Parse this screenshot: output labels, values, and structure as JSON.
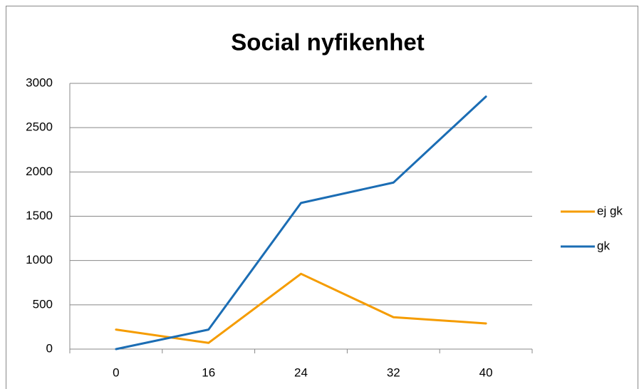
{
  "chart_data": {
    "type": "line",
    "title": "Social nyfikenhet",
    "categories": [
      "0",
      "16",
      "24",
      "32",
      "40"
    ],
    "series": [
      {
        "name": "ej gk",
        "color": "#f59c00",
        "values": [
          220,
          70,
          850,
          360,
          290
        ]
      },
      {
        "name": "gk",
        "color": "#1b6db4",
        "values": [
          0,
          220,
          1650,
          1880,
          2850
        ]
      }
    ],
    "ylim": [
      0,
      3000
    ],
    "yticks": [
      0,
      500,
      1000,
      1500,
      2000,
      2500,
      3000
    ],
    "grid": true,
    "legend": "right"
  }
}
